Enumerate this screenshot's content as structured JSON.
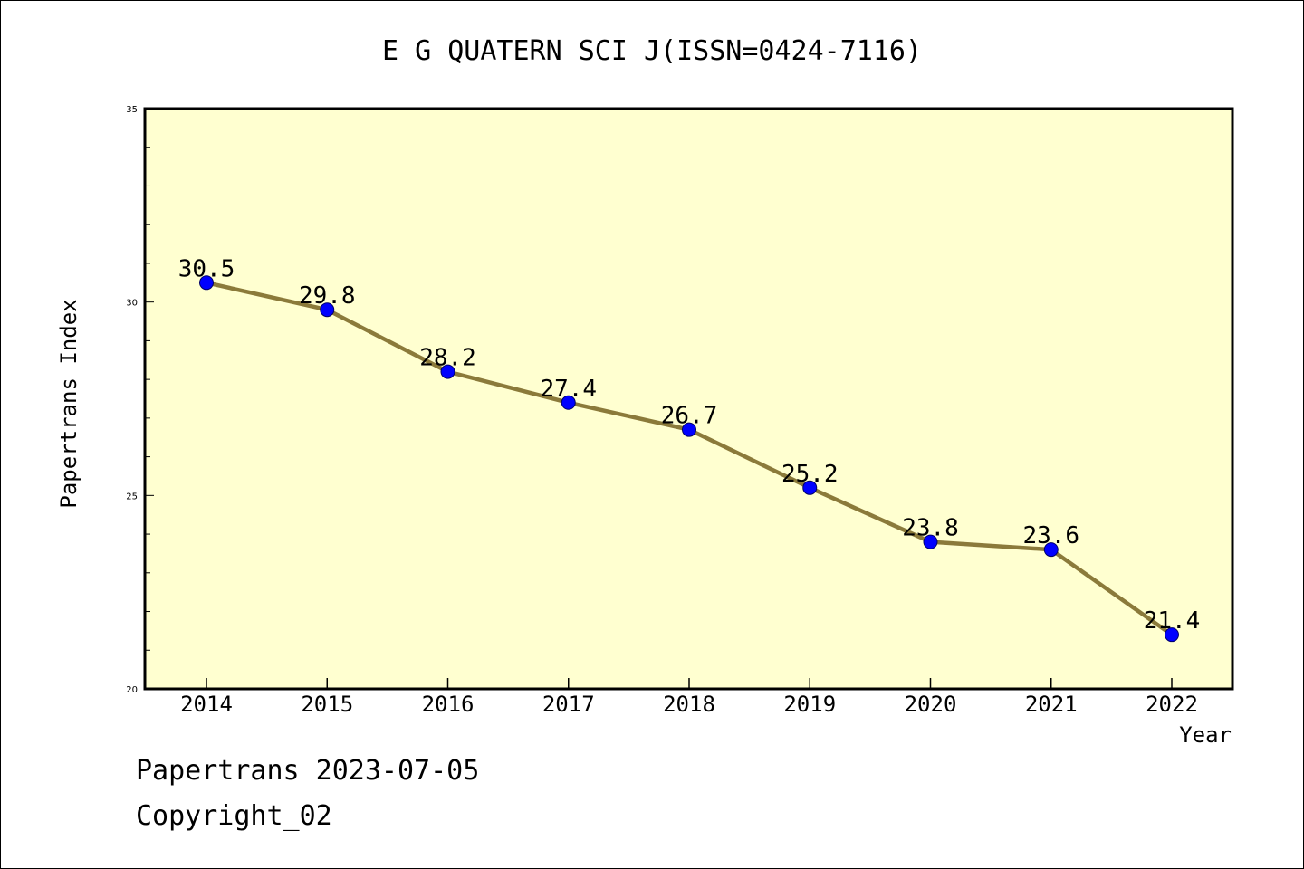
{
  "chart_data": {
    "type": "line",
    "title": "E G QUATERN SCI J(ISSN=0424-7116)",
    "xlabel": "Year",
    "ylabel": "Papertrans Index",
    "categories": [
      "2014",
      "2015",
      "2016",
      "2017",
      "2018",
      "2019",
      "2020",
      "2021",
      "2022"
    ],
    "series": [
      {
        "values": [
          30.5,
          29.8,
          28.2,
          27.4,
          26.7,
          25.2,
          23.8,
          23.6,
          21.4
        ],
        "data_labels": [
          "30.5",
          "29.8",
          "28.2",
          "27.4",
          "26.7",
          "25.2",
          "23.8",
          "23.6",
          "21.4"
        ]
      }
    ],
    "ylim": [
      20,
      35
    ],
    "yticks": [
      "20",
      "25",
      "30",
      "35"
    ],
    "grid": false,
    "colors": {
      "line": "#8B7A3A",
      "marker": "#0000FF",
      "plot_background": "#FFFFD0"
    }
  },
  "footer": {
    "line1": "Papertrans 2023-07-05",
    "line2": "Copyright_02"
  }
}
